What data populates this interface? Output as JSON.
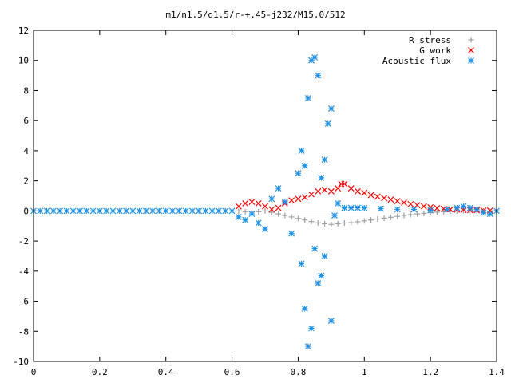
{
  "chart_data": {
    "type": "scatter",
    "title": "m1/n1.5/q1.5/r-+.45-j232/M15.0/512",
    "xlabel": "",
    "ylabel": "",
    "xlim": [
      0,
      1.4
    ],
    "ylim": [
      -10,
      12
    ],
    "xticks": [
      0,
      0.2,
      0.4,
      0.6,
      0.8,
      1,
      1.2,
      1.4
    ],
    "xtick_labels": [
      "0",
      "0.2",
      "0.4",
      "0.6",
      "0.8",
      "1",
      "1.2",
      "1.4"
    ],
    "yticks": [
      -10,
      -8,
      -6,
      -4,
      -2,
      0,
      2,
      4,
      6,
      8,
      10,
      12
    ],
    "ytick_labels": [
      "-10",
      "-8",
      "-6",
      "-4",
      "-2",
      "0",
      "2",
      "4",
      "6",
      "8",
      "10",
      "12"
    ],
    "grid": false,
    "legend_position": "top-right",
    "series": [
      {
        "name": "R stress",
        "marker": "plus",
        "color": "#a0a0a0",
        "points": [
          [
            0.62,
            0.0
          ],
          [
            0.64,
            -0.05
          ],
          [
            0.66,
            -0.08
          ],
          [
            0.68,
            -0.05
          ],
          [
            0.7,
            0.0
          ],
          [
            0.72,
            -0.1
          ],
          [
            0.74,
            -0.2
          ],
          [
            0.76,
            -0.3
          ],
          [
            0.78,
            -0.4
          ],
          [
            0.8,
            -0.5
          ],
          [
            0.82,
            -0.6
          ],
          [
            0.84,
            -0.7
          ],
          [
            0.86,
            -0.8
          ],
          [
            0.88,
            -0.85
          ],
          [
            0.9,
            -0.9
          ],
          [
            0.92,
            -0.85
          ],
          [
            0.94,
            -0.8
          ],
          [
            0.96,
            -0.78
          ],
          [
            0.98,
            -0.72
          ],
          [
            1.0,
            -0.66
          ],
          [
            1.02,
            -0.6
          ],
          [
            1.04,
            -0.54
          ],
          [
            1.06,
            -0.48
          ],
          [
            1.08,
            -0.42
          ],
          [
            1.1,
            -0.36
          ],
          [
            1.12,
            -0.3
          ],
          [
            1.14,
            -0.25
          ],
          [
            1.16,
            -0.2
          ],
          [
            1.18,
            -0.16
          ],
          [
            1.2,
            -0.12
          ],
          [
            1.22,
            -0.08
          ],
          [
            1.24,
            -0.05
          ],
          [
            1.26,
            -0.02
          ],
          [
            1.28,
            0.0
          ],
          [
            1.3,
            0.02
          ],
          [
            1.32,
            0.03
          ],
          [
            1.34,
            0.02
          ],
          [
            1.36,
            0.0
          ],
          [
            1.38,
            -0.02
          ],
          [
            1.4,
            0.0
          ]
        ]
      },
      {
        "name": "G work",
        "marker": "cross",
        "color": "#ff0000",
        "points": [
          [
            0.62,
            0.3
          ],
          [
            0.64,
            0.5
          ],
          [
            0.66,
            0.6
          ],
          [
            0.68,
            0.5
          ],
          [
            0.7,
            0.3
          ],
          [
            0.72,
            0.1
          ],
          [
            0.74,
            0.2
          ],
          [
            0.76,
            0.5
          ],
          [
            0.78,
            0.7
          ],
          [
            0.8,
            0.8
          ],
          [
            0.82,
            0.9
          ],
          [
            0.84,
            1.1
          ],
          [
            0.86,
            1.3
          ],
          [
            0.88,
            1.4
          ],
          [
            0.9,
            1.3
          ],
          [
            0.92,
            1.5
          ],
          [
            0.93,
            1.8
          ],
          [
            0.94,
            1.8
          ],
          [
            0.96,
            1.5
          ],
          [
            0.98,
            1.3
          ],
          [
            1.0,
            1.2
          ],
          [
            1.02,
            1.05
          ],
          [
            1.04,
            0.95
          ],
          [
            1.06,
            0.85
          ],
          [
            1.08,
            0.75
          ],
          [
            1.1,
            0.65
          ],
          [
            1.12,
            0.55
          ],
          [
            1.14,
            0.45
          ],
          [
            1.16,
            0.38
          ],
          [
            1.18,
            0.3
          ],
          [
            1.2,
            0.24
          ],
          [
            1.22,
            0.18
          ],
          [
            1.24,
            0.14
          ],
          [
            1.26,
            0.1
          ],
          [
            1.28,
            0.08
          ],
          [
            1.3,
            0.06
          ],
          [
            1.32,
            0.05
          ],
          [
            1.34,
            0.04
          ],
          [
            1.36,
            0.03
          ],
          [
            1.38,
            0.02
          ]
        ]
      },
      {
        "name": "Acoustic flux",
        "marker": "star",
        "color": "#1e90e6",
        "points": [
          [
            0.0,
            0.0
          ],
          [
            0.02,
            0.0
          ],
          [
            0.04,
            0.0
          ],
          [
            0.06,
            0.0
          ],
          [
            0.08,
            0.0
          ],
          [
            0.1,
            0.0
          ],
          [
            0.12,
            0.0
          ],
          [
            0.14,
            0.0
          ],
          [
            0.16,
            0.0
          ],
          [
            0.18,
            0.0
          ],
          [
            0.2,
            0.0
          ],
          [
            0.22,
            0.0
          ],
          [
            0.24,
            0.0
          ],
          [
            0.26,
            0.0
          ],
          [
            0.28,
            0.0
          ],
          [
            0.3,
            0.0
          ],
          [
            0.32,
            0.0
          ],
          [
            0.34,
            0.0
          ],
          [
            0.36,
            0.0
          ],
          [
            0.38,
            0.0
          ],
          [
            0.4,
            0.0
          ],
          [
            0.42,
            0.0
          ],
          [
            0.44,
            0.0
          ],
          [
            0.46,
            0.0
          ],
          [
            0.48,
            0.0
          ],
          [
            0.5,
            0.0
          ],
          [
            0.52,
            0.0
          ],
          [
            0.54,
            0.0
          ],
          [
            0.56,
            0.0
          ],
          [
            0.58,
            0.0
          ],
          [
            0.6,
            0.0
          ],
          [
            0.62,
            -0.4
          ],
          [
            0.64,
            -0.6
          ],
          [
            0.66,
            -0.2
          ],
          [
            0.68,
            -0.8
          ],
          [
            0.7,
            -1.2
          ],
          [
            0.72,
            0.8
          ],
          [
            0.74,
            1.5
          ],
          [
            0.76,
            0.6
          ],
          [
            0.78,
            -1.5
          ],
          [
            0.8,
            2.5
          ],
          [
            0.81,
            4.0
          ],
          [
            0.82,
            3.0
          ],
          [
            0.83,
            7.5
          ],
          [
            0.84,
            10.0
          ],
          [
            0.85,
            10.2
          ],
          [
            0.86,
            9.0
          ],
          [
            0.87,
            2.2
          ],
          [
            0.88,
            3.4
          ],
          [
            0.89,
            5.8
          ],
          [
            0.9,
            6.8
          ],
          [
            0.81,
            -3.5
          ],
          [
            0.82,
            -6.5
          ],
          [
            0.83,
            -9.0
          ],
          [
            0.84,
            -7.8
          ],
          [
            0.85,
            -2.5
          ],
          [
            0.86,
            -4.8
          ],
          [
            0.87,
            -4.3
          ],
          [
            0.88,
            -3.0
          ],
          [
            0.9,
            -7.3
          ],
          [
            0.91,
            -0.3
          ],
          [
            0.92,
            0.5
          ],
          [
            0.94,
            0.2
          ],
          [
            0.96,
            0.2
          ],
          [
            0.98,
            0.2
          ],
          [
            1.0,
            0.2
          ],
          [
            1.05,
            0.15
          ],
          [
            1.1,
            0.1
          ],
          [
            1.15,
            0.1
          ],
          [
            1.2,
            0.05
          ],
          [
            1.25,
            0.1
          ],
          [
            1.28,
            0.2
          ],
          [
            1.3,
            0.3
          ],
          [
            1.32,
            0.2
          ],
          [
            1.34,
            0.1
          ],
          [
            1.36,
            -0.1
          ],
          [
            1.38,
            -0.2
          ],
          [
            1.4,
            0.0
          ]
        ]
      }
    ]
  }
}
